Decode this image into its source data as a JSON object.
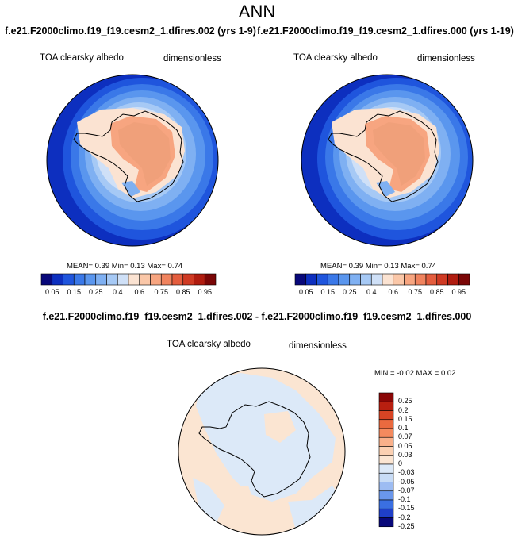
{
  "header": {
    "title": "ANN",
    "left_run": "f.e21.F2000climo.f19_f19.cesm2_1.dfires.002 (yrs 1-9)",
    "right_run": "f.e21.F2000climo.f19_f19.cesm2_1.dfires.000 (yrs 1-19)",
    "difference_title": "f.e21.F2000climo.f19_f19.cesm2_1.dfires.002 - f.e21.F2000climo.f19_f19.cesm2_1.dfires.000"
  },
  "panels": {
    "left": {
      "variable": "TOA clearsky albedo",
      "units": "dimensionless",
      "stats": "MEAN=  0.39  Min=  0.13  Max=  0.74"
    },
    "right": {
      "variable": "TOA clearsky albedo",
      "units": "dimensionless",
      "stats": "MEAN=  0.39  Min=  0.13  Max=  0.74"
    },
    "difference": {
      "variable": "TOA clearsky albedo",
      "units": "dimensionless",
      "stats": "MIN = -0.02 MAX =  0.02"
    }
  },
  "colorbars": {
    "abs_colors": [
      "#08087a",
      "#0d2fbf",
      "#1f55dd",
      "#3a78e8",
      "#5a96ee",
      "#7fb0f2",
      "#a6c9f5",
      "#cfe0f7",
      "#fbe3d2",
      "#fac7a8",
      "#f7a580",
      "#f0835e",
      "#e45d3e",
      "#cf3a23",
      "#b01c0f",
      "#7a0606"
    ],
    "abs_ticks": [
      "0.05",
      "0.15",
      "0.25",
      "0.4",
      "0.6",
      "0.75",
      "0.85",
      "0.95"
    ],
    "diff_colors": [
      "#08087a",
      "#1f3fc8",
      "#3a6fe2",
      "#6a97ec",
      "#9dbcf2",
      "#c8dcf6",
      "#dce9f8",
      "#fbe5d2",
      "#fbd0b2",
      "#f9b08a",
      "#f48a5e",
      "#ea6a3f",
      "#d84424",
      "#b81f10",
      "#8a0606"
    ],
    "diff_ticks": [
      "0.25",
      "0.2",
      "0.15",
      "0.1",
      "0.07",
      "0.05",
      "0.03",
      "0",
      "-0.03",
      "-0.05",
      "-0.07",
      "-0.1",
      "-0.15",
      "-0.2",
      "-0.25"
    ]
  }
}
